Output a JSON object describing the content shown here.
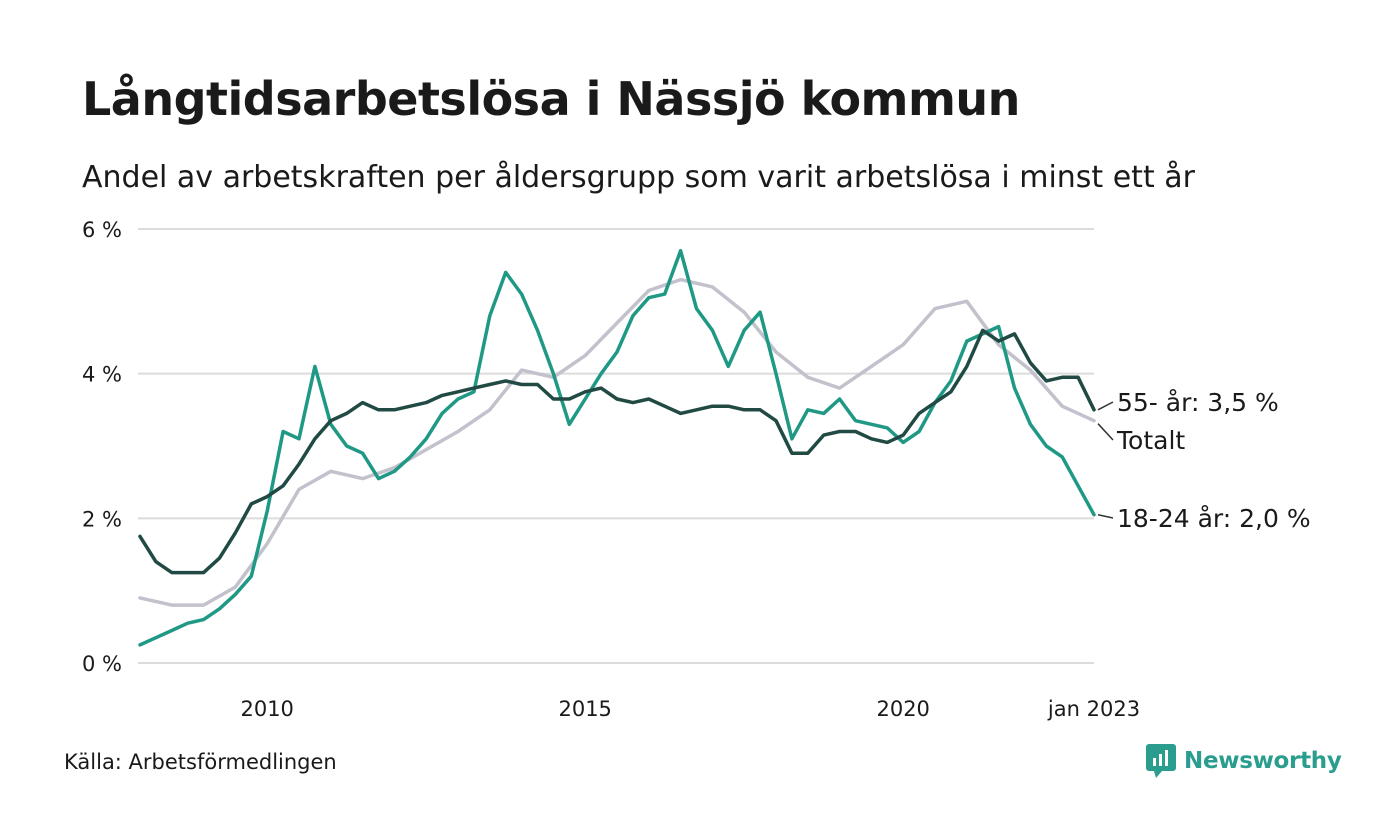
{
  "title": "Långtidsarbetslösa i Nässjö kommun",
  "subtitle": "Andel av arbetskraften per åldersgrupp som varit arbetslösa i minst ett år",
  "source": "Källa: Arbetsförmedlingen",
  "logo_text": "Newsworthy",
  "colors": {
    "age18_24": "#1f9985",
    "age55": "#214a44",
    "total": "#c2c1cc",
    "grid": "#dcdcdc",
    "brand": "#2a9d8f"
  },
  "chart_data": {
    "type": "line",
    "title": "Långtidsarbetslösa i Nässjö kommun",
    "subtitle": "Andel av arbetskraften per åldersgrupp som varit arbetslösa i minst ett år",
    "y_tick_labels": [
      "0 %",
      "2 %",
      "4 %",
      "6 %"
    ],
    "y_ticks": [
      0,
      2,
      4,
      6
    ],
    "ylim": [
      0,
      6
    ],
    "x_tick_labels": [
      "2010",
      "2015",
      "2020",
      "jan 2023"
    ],
    "x_ticks": [
      2010.0,
      2015.0,
      2020.0,
      2023.0
    ],
    "xlim": [
      2008.0,
      2023.0
    ],
    "grid": true,
    "series": [
      {
        "key": "total",
        "name": "Totalt",
        "end_label": "Totalt",
        "points": [
          [
            2008.0,
            0.9
          ],
          [
            2008.5,
            0.8
          ],
          [
            2009.0,
            0.8
          ],
          [
            2009.5,
            1.05
          ],
          [
            2010.0,
            1.65
          ],
          [
            2010.5,
            2.4
          ],
          [
            2011.0,
            2.65
          ],
          [
            2011.5,
            2.55
          ],
          [
            2012.0,
            2.7
          ],
          [
            2012.5,
            2.95
          ],
          [
            2013.0,
            3.2
          ],
          [
            2013.5,
            3.5
          ],
          [
            2014.0,
            4.05
          ],
          [
            2014.5,
            3.95
          ],
          [
            2015.0,
            4.25
          ],
          [
            2015.5,
            4.7
          ],
          [
            2016.0,
            5.15
          ],
          [
            2016.5,
            5.3
          ],
          [
            2017.0,
            5.2
          ],
          [
            2017.5,
            4.85
          ],
          [
            2018.0,
            4.3
          ],
          [
            2018.5,
            3.95
          ],
          [
            2019.0,
            3.8
          ],
          [
            2019.5,
            4.1
          ],
          [
            2020.0,
            4.4
          ],
          [
            2020.5,
            4.9
          ],
          [
            2021.0,
            5.0
          ],
          [
            2021.5,
            4.4
          ],
          [
            2022.0,
            4.05
          ],
          [
            2022.5,
            3.55
          ],
          [
            2023.0,
            3.35
          ]
        ]
      },
      {
        "key": "age18_24",
        "name": "18-24 år",
        "end_label": "18-24 år: 2,0 %",
        "points": [
          [
            2008.0,
            0.25
          ],
          [
            2008.25,
            0.35
          ],
          [
            2008.5,
            0.45
          ],
          [
            2008.75,
            0.55
          ],
          [
            2009.0,
            0.6
          ],
          [
            2009.25,
            0.75
          ],
          [
            2009.5,
            0.95
          ],
          [
            2009.75,
            1.2
          ],
          [
            2010.0,
            2.1
          ],
          [
            2010.25,
            3.2
          ],
          [
            2010.5,
            3.1
          ],
          [
            2010.75,
            4.1
          ],
          [
            2011.0,
            3.3
          ],
          [
            2011.25,
            3.0
          ],
          [
            2011.5,
            2.9
          ],
          [
            2011.75,
            2.55
          ],
          [
            2012.0,
            2.65
          ],
          [
            2012.25,
            2.85
          ],
          [
            2012.5,
            3.1
          ],
          [
            2012.75,
            3.45
          ],
          [
            2013.0,
            3.65
          ],
          [
            2013.25,
            3.75
          ],
          [
            2013.5,
            4.8
          ],
          [
            2013.75,
            5.4
          ],
          [
            2014.0,
            5.1
          ],
          [
            2014.25,
            4.6
          ],
          [
            2014.5,
            4.0
          ],
          [
            2014.75,
            3.3
          ],
          [
            2015.0,
            3.65
          ],
          [
            2015.25,
            4.0
          ],
          [
            2015.5,
            4.3
          ],
          [
            2015.75,
            4.8
          ],
          [
            2016.0,
            5.05
          ],
          [
            2016.25,
            5.1
          ],
          [
            2016.5,
            5.7
          ],
          [
            2016.75,
            4.9
          ],
          [
            2017.0,
            4.6
          ],
          [
            2017.25,
            4.1
          ],
          [
            2017.5,
            4.6
          ],
          [
            2017.75,
            4.85
          ],
          [
            2018.0,
            4.0
          ],
          [
            2018.25,
            3.1
          ],
          [
            2018.5,
            3.5
          ],
          [
            2018.75,
            3.45
          ],
          [
            2019.0,
            3.65
          ],
          [
            2019.25,
            3.35
          ],
          [
            2019.5,
            3.3
          ],
          [
            2019.75,
            3.25
          ],
          [
            2020.0,
            3.05
          ],
          [
            2020.25,
            3.2
          ],
          [
            2020.5,
            3.6
          ],
          [
            2020.75,
            3.9
          ],
          [
            2021.0,
            4.45
          ],
          [
            2021.25,
            4.55
          ],
          [
            2021.5,
            4.65
          ],
          [
            2021.75,
            3.8
          ],
          [
            2022.0,
            3.3
          ],
          [
            2022.25,
            3.0
          ],
          [
            2022.5,
            2.85
          ],
          [
            2022.75,
            2.45
          ],
          [
            2023.0,
            2.05
          ]
        ]
      },
      {
        "key": "age55",
        "name": "55- år",
        "end_label": "55- år: 3,5 %",
        "points": [
          [
            2008.0,
            1.75
          ],
          [
            2008.25,
            1.4
          ],
          [
            2008.5,
            1.25
          ],
          [
            2008.75,
            1.25
          ],
          [
            2009.0,
            1.25
          ],
          [
            2009.25,
            1.45
          ],
          [
            2009.5,
            1.8
          ],
          [
            2009.75,
            2.2
          ],
          [
            2010.0,
            2.3
          ],
          [
            2010.25,
            2.45
          ],
          [
            2010.5,
            2.75
          ],
          [
            2010.75,
            3.1
          ],
          [
            2011.0,
            3.35
          ],
          [
            2011.25,
            3.45
          ],
          [
            2011.5,
            3.6
          ],
          [
            2011.75,
            3.5
          ],
          [
            2012.0,
            3.5
          ],
          [
            2012.25,
            3.55
          ],
          [
            2012.5,
            3.6
          ],
          [
            2012.75,
            3.7
          ],
          [
            2013.0,
            3.75
          ],
          [
            2013.25,
            3.8
          ],
          [
            2013.5,
            3.85
          ],
          [
            2013.75,
            3.9
          ],
          [
            2014.0,
            3.85
          ],
          [
            2014.25,
            3.85
          ],
          [
            2014.5,
            3.65
          ],
          [
            2014.75,
            3.65
          ],
          [
            2015.0,
            3.75
          ],
          [
            2015.25,
            3.8
          ],
          [
            2015.5,
            3.65
          ],
          [
            2015.75,
            3.6
          ],
          [
            2016.0,
            3.65
          ],
          [
            2016.25,
            3.55
          ],
          [
            2016.5,
            3.45
          ],
          [
            2016.75,
            3.5
          ],
          [
            2017.0,
            3.55
          ],
          [
            2017.25,
            3.55
          ],
          [
            2017.5,
            3.5
          ],
          [
            2017.75,
            3.5
          ],
          [
            2018.0,
            3.35
          ],
          [
            2018.25,
            2.9
          ],
          [
            2018.5,
            2.9
          ],
          [
            2018.75,
            3.15
          ],
          [
            2019.0,
            3.2
          ],
          [
            2019.25,
            3.2
          ],
          [
            2019.5,
            3.1
          ],
          [
            2019.75,
            3.05
          ],
          [
            2020.0,
            3.15
          ],
          [
            2020.25,
            3.45
          ],
          [
            2020.5,
            3.6
          ],
          [
            2020.75,
            3.75
          ],
          [
            2021.0,
            4.1
          ],
          [
            2021.25,
            4.6
          ],
          [
            2021.5,
            4.45
          ],
          [
            2021.75,
            4.55
          ],
          [
            2022.0,
            4.15
          ],
          [
            2022.25,
            3.9
          ],
          [
            2022.5,
            3.95
          ],
          [
            2022.75,
            3.95
          ],
          [
            2023.0,
            3.5
          ]
        ]
      }
    ]
  }
}
